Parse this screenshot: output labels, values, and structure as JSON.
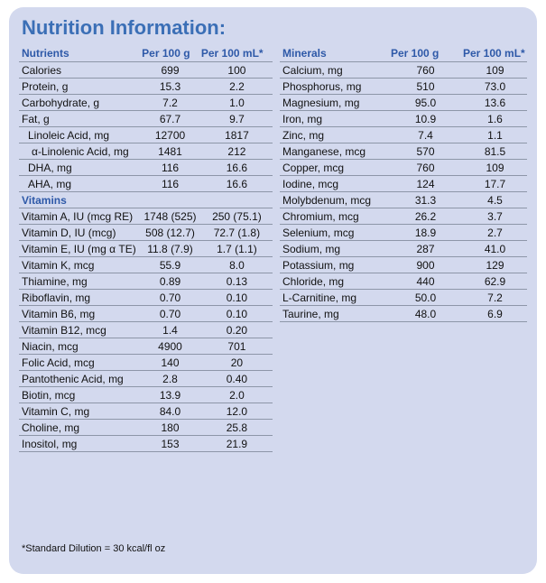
{
  "title": "Nutrition Information:",
  "left_table": {
    "headers": [
      "Nutrients",
      "Per 100 g",
      "Per 100 mL*"
    ],
    "rows": [
      {
        "name": "Calories",
        "g": "699",
        "ml": "100"
      },
      {
        "name": "Protein, g",
        "g": "15.3",
        "ml": "2.2"
      },
      {
        "name": "Carbohydrate, g",
        "g": "7.2",
        "ml": "1.0"
      },
      {
        "name": "Fat, g",
        "g": "67.7",
        "ml": "9.7"
      },
      {
        "name": "Linoleic Acid, mg",
        "g": "12700",
        "ml": "1817"
      },
      {
        "name": "α-Linolenic Acid, mg",
        "g": "1481",
        "ml": "212"
      },
      {
        "name": "DHA, mg",
        "g": "116",
        "ml": "16.6"
      },
      {
        "name": "AHA, mg",
        "g": "116",
        "ml": "16.6"
      }
    ],
    "vitamins_label": "Vitamins",
    "vitamin_rows": [
      {
        "name": "Vitamin A, IU (mcg RE)",
        "g": "1748 (525)",
        "ml": "250 (75.1)"
      },
      {
        "name": "Vitamin D, IU (mcg)",
        "g": "508 (12.7)",
        "ml": "72.7 (1.8)"
      },
      {
        "name": "Vitamin E, IU (mg α TE)",
        "g": "11.8 (7.9)",
        "ml": "1.7 (1.1)"
      },
      {
        "name": "Vitamin K, mcg",
        "g": "55.9",
        "ml": "8.0"
      },
      {
        "name": "Thiamine, mg",
        "g": "0.89",
        "ml": "0.13"
      },
      {
        "name": "Riboflavin, mg",
        "g": "0.70",
        "ml": "0.10"
      },
      {
        "name": "Vitamin B6, mg",
        "g": "0.70",
        "ml": "0.10"
      },
      {
        "name": "Vitamin B12, mcg",
        "g": "1.4",
        "ml": "0.20"
      },
      {
        "name": "Niacin, mcg",
        "g": "4900",
        "ml": "701"
      },
      {
        "name": "Folic Acid, mcg",
        "g": "140",
        "ml": "20"
      },
      {
        "name": "Pantothenic Acid, mg",
        "g": "2.8",
        "ml": "0.40"
      },
      {
        "name": "Biotin, mcg",
        "g": "13.9",
        "ml": "2.0"
      },
      {
        "name": "Vitamin C, mg",
        "g": "84.0",
        "ml": "12.0"
      },
      {
        "name": "Choline, mg",
        "g": "180",
        "ml": "25.8"
      },
      {
        "name": "Inositol, mg",
        "g": "153",
        "ml": "21.9"
      }
    ]
  },
  "right_table": {
    "headers": [
      "Minerals",
      "Per 100 g",
      "Per 100 mL*"
    ],
    "rows": [
      {
        "name": "Calcium, mg",
        "g": "760",
        "ml": "109"
      },
      {
        "name": "Phosphorus, mg",
        "g": "510",
        "ml": "73.0"
      },
      {
        "name": "Magnesium, mg",
        "g": "95.0",
        "ml": "13.6"
      },
      {
        "name": "Iron, mg",
        "g": "10.9",
        "ml": "1.6"
      },
      {
        "name": "Zinc, mg",
        "g": "7.4",
        "ml": "1.1"
      },
      {
        "name": "Manganese, mcg",
        "g": "570",
        "ml": "81.5"
      },
      {
        "name": "Copper, mcg",
        "g": "760",
        "ml": "109"
      },
      {
        "name": "Iodine, mcg",
        "g": "124",
        "ml": "17.7"
      },
      {
        "name": "Molybdenum, mcg",
        "g": "31.3",
        "ml": "4.5"
      },
      {
        "name": "Chromium, mcg",
        "g": "26.2",
        "ml": "3.7"
      },
      {
        "name": "Selenium, mcg",
        "g": "18.9",
        "ml": "2.7"
      },
      {
        "name": "Sodium, mg",
        "g": "287",
        "ml": "41.0"
      },
      {
        "name": "Potassium, mg",
        "g": "900",
        "ml": "129"
      },
      {
        "name": "Chloride, mg",
        "g": "440",
        "ml": "62.9"
      },
      {
        "name": "L-Carnitine, mg",
        "g": "50.0",
        "ml": "7.2"
      },
      {
        "name": "Taurine, mg",
        "g": "48.0",
        "ml": "6.9"
      }
    ]
  },
  "footnote": "*Standard Dilution = 30 kcal/fl oz"
}
